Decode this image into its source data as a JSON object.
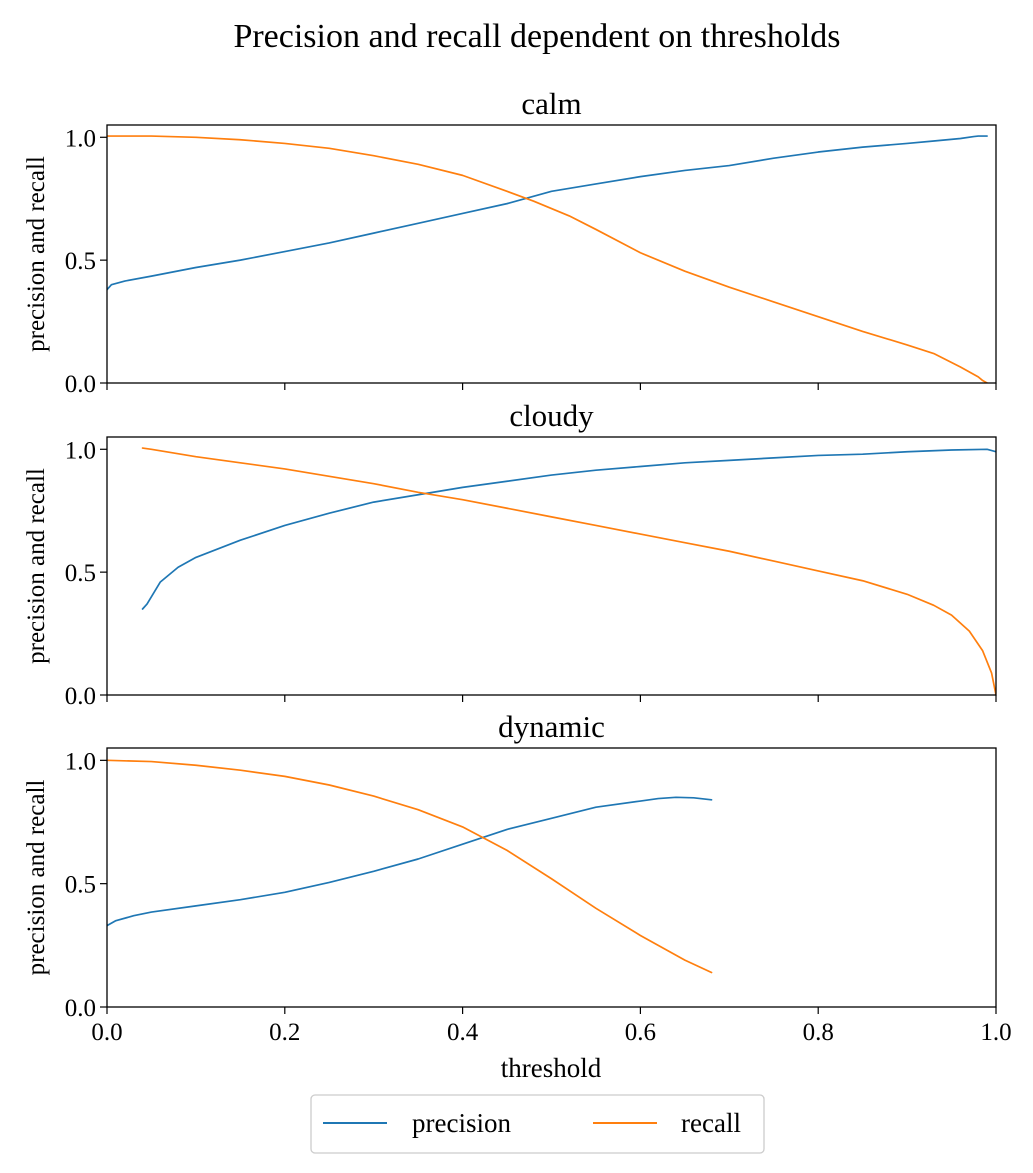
{
  "chart_data": {
    "type": "line",
    "title": "Precision and recall dependent on thresholds",
    "xlabel": "threshold",
    "ylabel": "precision and recall",
    "xlim": [
      0.0,
      1.0
    ],
    "ylim": [
      0.0,
      1.05
    ],
    "x_ticks": [
      "0.0",
      "0.2",
      "0.4",
      "0.6",
      "0.8",
      "1.0"
    ],
    "y_ticks": [
      "0.0",
      "0.5",
      "1.0"
    ],
    "grid": false,
    "legend": {
      "position": "bottom-center",
      "entries": [
        {
          "name": "precision",
          "color": "#1f77b4"
        },
        {
          "name": "recall",
          "color": "#ff7f0e"
        }
      ]
    },
    "colors": {
      "precision": "#1f77b4",
      "recall": "#ff7f0e"
    },
    "panels": [
      {
        "title": "calm",
        "series": [
          {
            "name": "precision",
            "x": [
              0.0,
              0.005,
              0.02,
              0.05,
              0.1,
              0.15,
              0.2,
              0.25,
              0.3,
              0.35,
              0.4,
              0.45,
              0.5,
              0.55,
              0.6,
              0.65,
              0.7,
              0.75,
              0.8,
              0.85,
              0.9,
              0.93,
              0.96,
              0.975,
              0.98,
              0.99
            ],
            "y": [
              0.38,
              0.4,
              0.415,
              0.435,
              0.47,
              0.5,
              0.535,
              0.57,
              0.61,
              0.65,
              0.69,
              0.73,
              0.78,
              0.81,
              0.84,
              0.865,
              0.885,
              0.915,
              0.94,
              0.96,
              0.975,
              0.985,
              0.995,
              1.003,
              1.005,
              1.005
            ]
          },
          {
            "name": "recall",
            "x": [
              0.0,
              0.05,
              0.1,
              0.15,
              0.2,
              0.25,
              0.3,
              0.35,
              0.4,
              0.45,
              0.48,
              0.52,
              0.55,
              0.6,
              0.65,
              0.7,
              0.75,
              0.8,
              0.85,
              0.9,
              0.93,
              0.96,
              0.98,
              0.985,
              0.99
            ],
            "y": [
              1.005,
              1.005,
              1.0,
              0.99,
              0.975,
              0.955,
              0.925,
              0.89,
              0.845,
              0.78,
              0.74,
              0.68,
              0.625,
              0.53,
              0.455,
              0.39,
              0.33,
              0.27,
              0.21,
              0.155,
              0.12,
              0.065,
              0.025,
              0.01,
              0.0
            ]
          }
        ]
      },
      {
        "title": "cloudy",
        "series": [
          {
            "name": "precision",
            "x": [
              0.04,
              0.045,
              0.05,
              0.06,
              0.08,
              0.1,
              0.15,
              0.2,
              0.25,
              0.3,
              0.35,
              0.4,
              0.45,
              0.5,
              0.55,
              0.6,
              0.65,
              0.7,
              0.75,
              0.8,
              0.85,
              0.9,
              0.95,
              0.99,
              1.0
            ],
            "y": [
              0.35,
              0.37,
              0.4,
              0.46,
              0.52,
              0.56,
              0.63,
              0.69,
              0.74,
              0.785,
              0.815,
              0.845,
              0.87,
              0.895,
              0.915,
              0.93,
              0.945,
              0.955,
              0.965,
              0.975,
              0.98,
              0.99,
              0.997,
              1.0,
              0.99
            ]
          },
          {
            "name": "recall",
            "x": [
              0.04,
              0.05,
              0.1,
              0.15,
              0.2,
              0.25,
              0.3,
              0.35,
              0.4,
              0.45,
              0.5,
              0.55,
              0.6,
              0.65,
              0.7,
              0.75,
              0.8,
              0.85,
              0.9,
              0.93,
              0.95,
              0.97,
              0.985,
              0.995,
              1.0
            ],
            "y": [
              1.005,
              1.0,
              0.97,
              0.945,
              0.92,
              0.89,
              0.86,
              0.825,
              0.795,
              0.76,
              0.725,
              0.69,
              0.655,
              0.62,
              0.585,
              0.545,
              0.505,
              0.465,
              0.41,
              0.365,
              0.325,
              0.26,
              0.18,
              0.09,
              0.0
            ]
          }
        ]
      },
      {
        "title": "dynamic",
        "series": [
          {
            "name": "precision",
            "x": [
              0.0,
              0.01,
              0.03,
              0.05,
              0.1,
              0.15,
              0.2,
              0.25,
              0.3,
              0.35,
              0.4,
              0.45,
              0.5,
              0.55,
              0.6,
              0.62,
              0.64,
              0.66,
              0.68
            ],
            "y": [
              0.33,
              0.35,
              0.37,
              0.385,
              0.41,
              0.435,
              0.465,
              0.505,
              0.55,
              0.6,
              0.66,
              0.72,
              0.765,
              0.81,
              0.835,
              0.845,
              0.85,
              0.848,
              0.84
            ]
          },
          {
            "name": "recall",
            "x": [
              0.0,
              0.05,
              0.1,
              0.15,
              0.2,
              0.25,
              0.3,
              0.35,
              0.4,
              0.45,
              0.5,
              0.55,
              0.6,
              0.65,
              0.68
            ],
            "y": [
              1.0,
              0.995,
              0.98,
              0.96,
              0.935,
              0.9,
              0.855,
              0.8,
              0.73,
              0.635,
              0.52,
              0.4,
              0.29,
              0.19,
              0.14
            ]
          }
        ]
      }
    ]
  }
}
